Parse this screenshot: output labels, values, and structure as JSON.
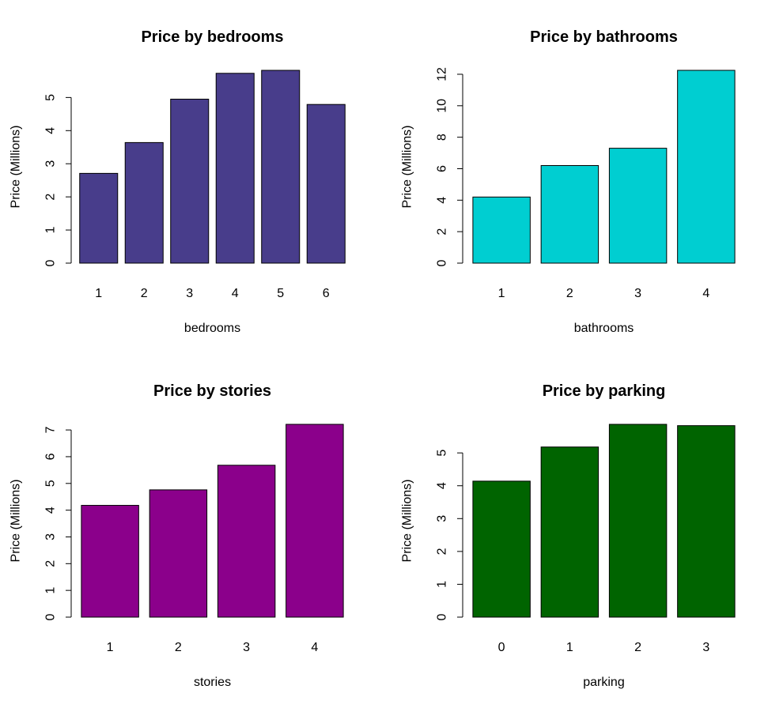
{
  "chart_data": [
    {
      "type": "bar",
      "title": "Price by bedrooms",
      "xlabel": "bedrooms",
      "ylabel": "Price (Millions)",
      "categories": [
        "1",
        "2",
        "3",
        "4",
        "5",
        "6"
      ],
      "values": [
        2.71,
        3.64,
        4.95,
        5.73,
        5.82,
        4.79
      ],
      "ylim": [
        0,
        5.82
      ],
      "yticks": [
        0,
        1,
        2,
        3,
        4,
        5
      ],
      "color": "#483D8B",
      "grid": false
    },
    {
      "type": "bar",
      "title": "Price by bathrooms",
      "xlabel": "bathrooms",
      "ylabel": "Price (Millions)",
      "categories": [
        "1",
        "2",
        "3",
        "4"
      ],
      "values": [
        4.2,
        6.2,
        7.3,
        12.25
      ],
      "ylim": [
        0,
        12.25
      ],
      "yticks": [
        0,
        2,
        4,
        6,
        8,
        10,
        12
      ],
      "color": "#00CED1",
      "grid": false
    },
    {
      "type": "bar",
      "title": "Price by stories",
      "xlabel": "stories",
      "ylabel": "Price (Millions)",
      "categories": [
        "1",
        "2",
        "3",
        "4"
      ],
      "values": [
        4.18,
        4.76,
        5.68,
        7.21
      ],
      "ylim": [
        0,
        7.21
      ],
      "yticks": [
        0,
        1,
        2,
        3,
        4,
        5,
        6,
        7
      ],
      "color": "#8B008B",
      "grid": false
    },
    {
      "type": "bar",
      "title": "Price by parking",
      "xlabel": "parking",
      "ylabel": "Price (Millions)",
      "categories": [
        "0",
        "1",
        "2",
        "3"
      ],
      "values": [
        4.14,
        5.18,
        5.87,
        5.83
      ],
      "ylim": [
        0,
        5.87
      ],
      "yticks": [
        0,
        1,
        2,
        3,
        4,
        5
      ],
      "color": "#006400",
      "grid": false
    }
  ]
}
